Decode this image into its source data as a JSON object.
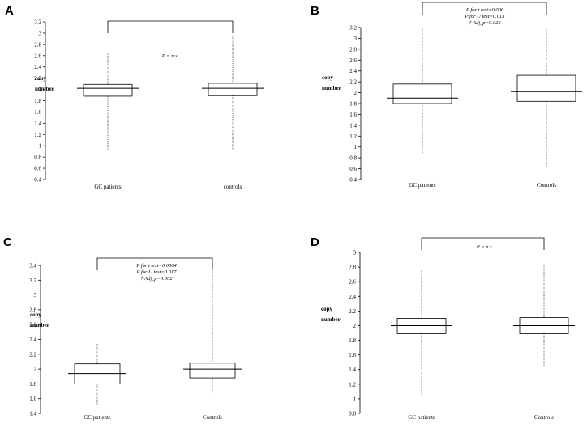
{
  "chart_data": [
    {
      "panel": "A",
      "type": "box",
      "ylabel": [
        "copy",
        "number"
      ],
      "ylim": [
        0.4,
        3.2
      ],
      "yticks": [
        "0.4",
        "0.6",
        "0.8",
        "1",
        "1.2",
        "1.4",
        "1.6",
        "1.8",
        "2",
        "2.2",
        "2.4",
        "2.6",
        "2.8",
        "3",
        "3.2"
      ],
      "categories": [
        "GC patients",
        "controls"
      ],
      "boxes": [
        {
          "min": 0.92,
          "q1": 1.88,
          "median": 2.02,
          "q3": 2.09,
          "max": 2.63
        },
        {
          "min": 0.94,
          "q1": 1.89,
          "median": 2.02,
          "q3": 2.11,
          "max": 2.95
        }
      ],
      "annotation": [
        "P = n.s."
      ]
    },
    {
      "panel": "B",
      "type": "box",
      "ylabel": [
        "copy",
        "number"
      ],
      "ylim": [
        0.4,
        3.2
      ],
      "yticks": [
        "0.4",
        "0.6",
        "0.8",
        "1",
        "1.2",
        "1.4",
        "1.6",
        "1.8",
        "2",
        "2.2",
        "2.4",
        "2.6",
        "2.8",
        "3",
        "3.2"
      ],
      "categories": [
        "GC patients",
        "Controls"
      ],
      "boxes": [
        {
          "min": 0.88,
          "q1": 1.8,
          "median": 1.9,
          "q3": 2.16,
          "max": 3.2
        },
        {
          "min": 0.63,
          "q1": 1.84,
          "median": 2.02,
          "q3": 2.32,
          "max": 3.2
        }
      ],
      "annotation": [
        "P for t test=0.006",
        "P for U test=0.013",
        "† Adj_p=0.026"
      ]
    },
    {
      "panel": "C",
      "type": "box",
      "ylabel": [
        "copy",
        "number"
      ],
      "ylim": [
        1.4,
        3.4
      ],
      "yticks": [
        "1.4",
        "1.6",
        "1.8",
        "2",
        "2.2",
        "2.4",
        "2.6",
        "2.8",
        "3",
        "3.2",
        "3.4"
      ],
      "categories": [
        "GC patients",
        "Controls"
      ],
      "boxes": [
        {
          "min": 1.52,
          "q1": 1.8,
          "median": 1.94,
          "q3": 2.07,
          "max": 2.34
        },
        {
          "min": 1.68,
          "q1": 1.88,
          "median": 2.0,
          "q3": 2.08,
          "max": 3.32
        }
      ],
      "annotation": [
        "P for t test=0.0004",
        "P for U test=0.017",
        "† Adj_p=0.002"
      ]
    },
    {
      "panel": "D",
      "type": "box",
      "ylabel": [
        "copy",
        "number"
      ],
      "ylim": [
        0.8,
        3.0
      ],
      "yticks": [
        "0.8",
        "1",
        "1.2",
        "1.4",
        "1.6",
        "1.8",
        "2",
        "2.2",
        "2.4",
        "2.6",
        "2.8",
        "3"
      ],
      "categories": [
        "GC patients",
        "Controls"
      ],
      "boxes": [
        {
          "min": 1.05,
          "q1": 1.89,
          "median": 2.0,
          "q3": 2.1,
          "max": 2.75
        },
        {
          "min": 1.43,
          "q1": 1.89,
          "median": 2.0,
          "q3": 2.11,
          "max": 2.84
        }
      ],
      "annotation": [
        "P = n.s."
      ]
    }
  ]
}
